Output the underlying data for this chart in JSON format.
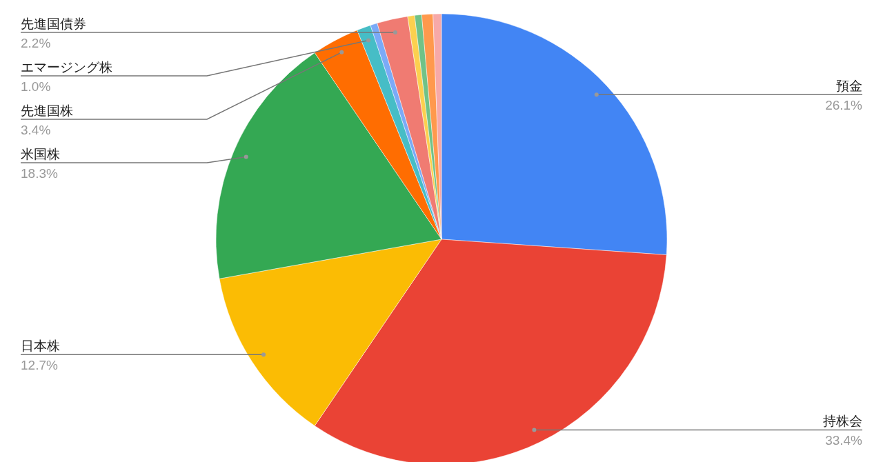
{
  "chart_data": {
    "type": "pie",
    "categories": [
      "預金",
      "持株会",
      "日本株",
      "米国株",
      "先進国株",
      "エマージング株",
      null,
      "先進国債券",
      null,
      null,
      null,
      null
    ],
    "values": [
      26.1,
      33.4,
      12.7,
      18.3,
      3.4,
      1.0,
      0.5,
      2.2,
      0.5,
      0.5,
      0.8,
      0.6
    ],
    "colors": [
      "#4285f4",
      "#ea4335",
      "#fbbc04",
      "#34a853",
      "#ff6d01",
      "#46bdc6",
      "#7baaf7",
      "#f07b72",
      "#fcd04f",
      "#71c287",
      "#ff994d",
      "#f7a9a8"
    ],
    "value_labels": [
      "26.1%",
      "33.4%",
      "12.7%",
      "18.3%",
      "3.4%",
      "1.0%",
      null,
      "2.2%",
      null,
      null,
      null,
      null
    ]
  }
}
